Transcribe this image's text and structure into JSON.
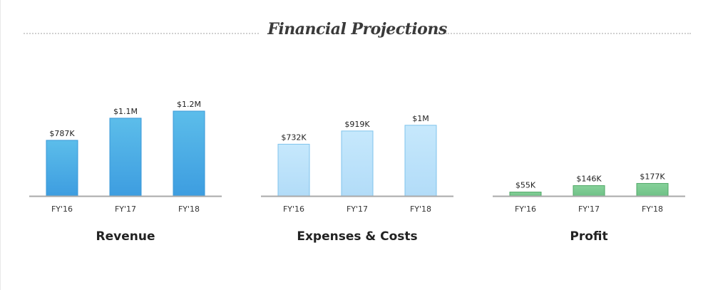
{
  "title": "Financial Projections",
  "chart_data": [
    {
      "type": "bar",
      "title": "Revenue",
      "categories": [
        "FY'16",
        "FY'17",
        "FY'18"
      ],
      "values": [
        787000,
        1100000,
        1200000
      ],
      "data_labels": [
        "$787K",
        "$1.1M",
        "$1.2M"
      ],
      "colors": {
        "fill_top": "#5cbdea",
        "fill_bottom": "#3d9de0",
        "stroke": "#3a98d8"
      }
    },
    {
      "type": "bar",
      "title": "Expenses & Costs",
      "categories": [
        "FY'16",
        "FY'17",
        "FY'18"
      ],
      "values": [
        732000,
        919000,
        1000000
      ],
      "data_labels": [
        "$732K",
        "$919K",
        "$1M"
      ],
      "colors": {
        "fill_top": "#c6e8fc",
        "fill_bottom": "#b2dcf8",
        "stroke": "#7fc3ec"
      }
    },
    {
      "type": "bar",
      "title": "Profit",
      "categories": [
        "FY'16",
        "FY'17",
        "FY'18"
      ],
      "values": [
        55000,
        146000,
        177000
      ],
      "data_labels": [
        "$55K",
        "$146K",
        "$177K"
      ],
      "colors": {
        "fill_top": "#86d19a",
        "fill_bottom": "#6fc186",
        "stroke": "#4fa866"
      }
    }
  ]
}
